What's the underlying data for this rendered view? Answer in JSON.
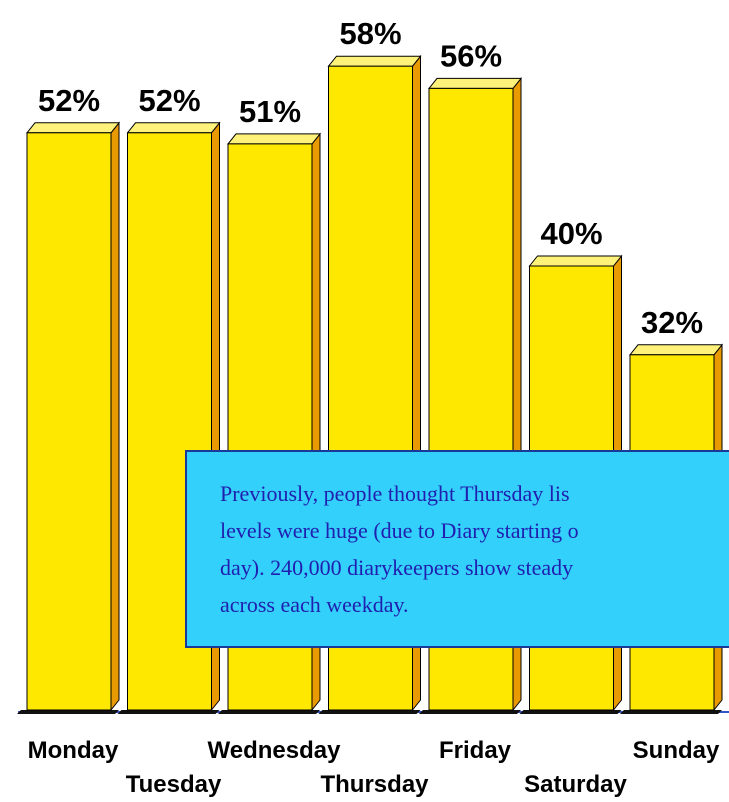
{
  "chart_data": {
    "type": "bar",
    "categories": [
      "Monday",
      "Tuesday",
      "Wednesday",
      "Thursday",
      "Friday",
      "Saturday",
      "Sunday"
    ],
    "values": [
      52,
      52,
      51,
      58,
      56,
      40,
      32
    ],
    "value_labels": [
      "52%",
      "52%",
      "51%",
      "58%",
      "56%",
      "40%",
      "32%"
    ],
    "color": "#ffe800",
    "annotation": [
      "Previously, people thought Thursday lis",
      "levels were huge (due to Diary starting o",
      "day). 240,000 diarykeepers show steady",
      "across each weekday."
    ]
  }
}
